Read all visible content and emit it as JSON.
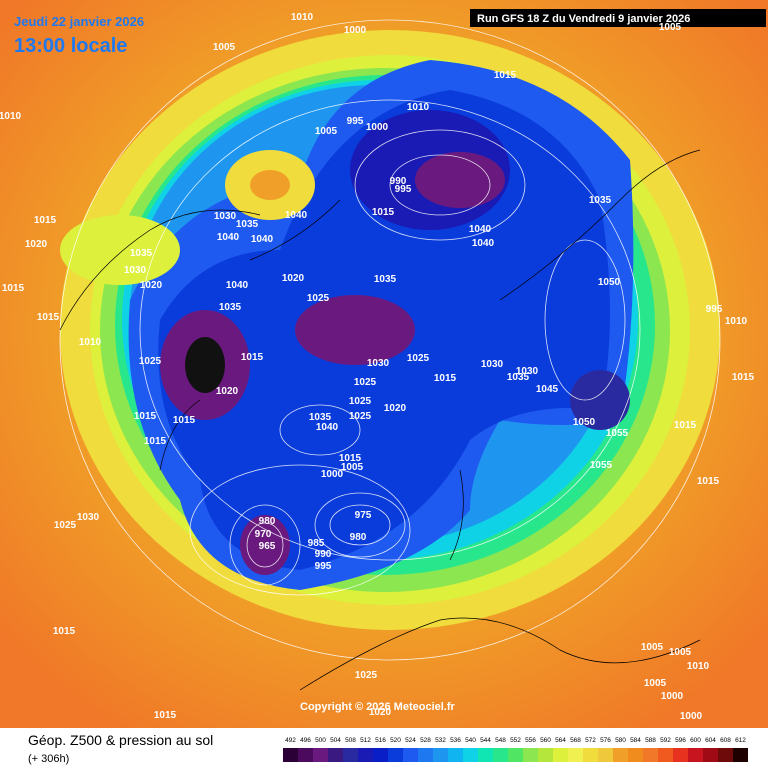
{
  "header": {
    "date": "Jeudi 22 janvier 2026",
    "time": "13:00 locale",
    "run": "Run GFS 18 Z du Vendredi 9 janvier 2026"
  },
  "footer": {
    "title": "Géop. Z500 & pression au sol",
    "subtitle": "(+ 306h)",
    "copyright": "Copyright © 2026 Meteociel.fr"
  },
  "legend": {
    "values": [
      492,
      496,
      500,
      504,
      508,
      512,
      516,
      520,
      524,
      528,
      532,
      536,
      540,
      544,
      548,
      552,
      556,
      560,
      564,
      568,
      572,
      576,
      580,
      584,
      588,
      592,
      596,
      600,
      604,
      608,
      612
    ],
    "colors": [
      "#2a0036",
      "#4b0a5e",
      "#6a1a7e",
      "#3a1a80",
      "#2a2aa0",
      "#1a1ab4",
      "#0a1ec8",
      "#0a3cdc",
      "#1e5af0",
      "#1e78f0",
      "#1e96f0",
      "#10b4f0",
      "#10d2e6",
      "#10e6b4",
      "#28e68c",
      "#50e664",
      "#8ce650",
      "#b4e63c",
      "#dcf03c",
      "#f0f050",
      "#f0dc3c",
      "#f0c83c",
      "#f0a028",
      "#f08c1e",
      "#f07828",
      "#f05a1e",
      "#e6321e",
      "#c8141e",
      "#a00a14",
      "#6e0a0a",
      "#1e0000"
    ]
  },
  "isobar_labels": [
    1010,
    1000,
    1005,
    1010,
    1015,
    1010,
    995,
    1000,
    1005,
    990,
    995,
    1015,
    1035,
    1030,
    1035,
    1040,
    1040,
    1040,
    1040,
    1040,
    1015,
    1020,
    1035,
    1030,
    1020,
    1040,
    1020,
    1025,
    1035,
    1050,
    1015,
    1015,
    1035,
    1010,
    1025,
    1015,
    1030,
    1025,
    1020,
    1025,
    1015,
    1030,
    1035,
    1030,
    1045,
    1015,
    1015,
    1035,
    1040,
    1025,
    1025,
    1020,
    1050,
    1055,
    1015,
    1015,
    1005,
    1000,
    1055,
    1015,
    1015,
    1015,
    1025,
    1030,
    980,
    975,
    970,
    965,
    985,
    980,
    990,
    995,
    1015,
    1025,
    1020,
    1015,
    1005,
    1005,
    1010,
    1005,
    1000,
    1000,
    1010,
    995,
    1005
  ]
}
